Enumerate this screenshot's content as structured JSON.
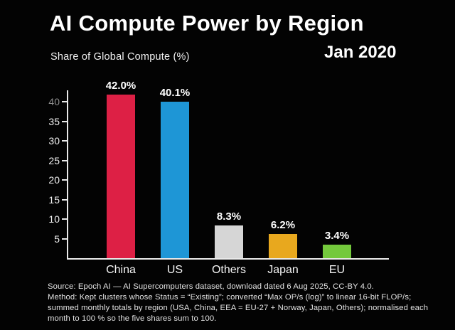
{
  "header": {
    "title": "AI Compute Power by Region",
    "subtitle": "Share of Global Compute (%)",
    "date": "Jan 2020"
  },
  "chart_data": {
    "type": "bar",
    "title": "AI Compute Power by Region",
    "subtitle_date": "Jan 2020",
    "ylabel": "Share of Global Compute (%)",
    "xlabel": "",
    "categories": [
      "China",
      "US",
      "Others",
      "Japan",
      "EU"
    ],
    "values": [
      42.0,
      40.1,
      8.3,
      6.2,
      3.4
    ],
    "value_labels": [
      "42.0%",
      "40.1%",
      "8.3%",
      "6.2%",
      "3.4%"
    ],
    "bar_colors": [
      "#dd2045",
      "#1e96d6",
      "#d6d6d6",
      "#e8a81e",
      "#74c93c"
    ],
    "y_ticks": [
      5,
      10,
      15,
      20,
      25,
      30,
      35,
      40
    ],
    "ylim": [
      0,
      43
    ],
    "grid": false,
    "legend_position": "none",
    "background_color": "#030303",
    "axis_color": "#eaeaea",
    "tick_label_color": "#f2f2f2",
    "dim_tick": {
      "value": 40,
      "color": "#8f8f8f"
    }
  },
  "footer": {
    "lines": [
      "Source: Epoch AI — AI Supercomputers dataset, download dated 6 Aug 2025, CC-BY 4.0.",
      "Method: Kept clusters whose Status = “Existing”; converted “Max OP/s (log)” to linear 16-bit FLOP/s;",
      "summed monthly totals by region (USA, China, EEA = EU-27 + Norway, Japan, Others); normalised each",
      "month to 100 % so the five shares sum to 100."
    ]
  }
}
